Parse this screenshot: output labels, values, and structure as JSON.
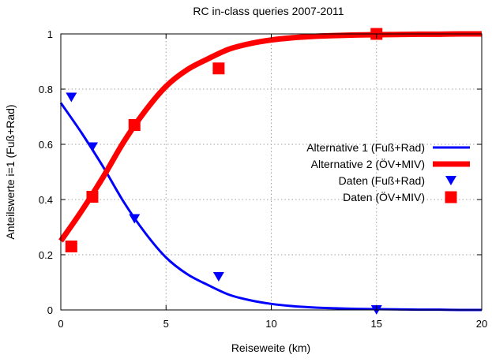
{
  "chart_data": {
    "type": "line",
    "title": "RC in-class queries 2007-2011",
    "xlabel": "Reiseweite (km)",
    "ylabel": "Anteilswerte i=1 (Fuß+Rad)",
    "xlim": [
      0,
      20
    ],
    "ylim": [
      0,
      1
    ],
    "xticks": [
      "0",
      "5",
      "10",
      "15",
      "20"
    ],
    "yticks": [
      "0",
      "0.2",
      "0.4",
      "0.6",
      "0.8",
      "1"
    ],
    "grid": true,
    "legend_position": "right",
    "series": [
      {
        "name": "Alternative 1 (Fuß+Rad)",
        "kind": "line",
        "color": "#0000ff",
        "x": [
          0,
          1,
          2,
          3,
          4,
          5,
          6,
          7,
          8,
          9,
          10,
          11,
          12,
          13,
          14,
          15,
          16,
          17,
          18,
          19,
          20
        ],
        "y": [
          0.75,
          0.64,
          0.52,
          0.39,
          0.28,
          0.19,
          0.13,
          0.09,
          0.055,
          0.035,
          0.022,
          0.014,
          0.009,
          0.006,
          0.004,
          0.003,
          0.002,
          0.001,
          0.001,
          0.0,
          0.0
        ]
      },
      {
        "name": "Alternative 2 (ÖV+MIV)",
        "kind": "line",
        "color": "#ff0000",
        "x": [
          0,
          1,
          2,
          3,
          4,
          5,
          6,
          7,
          8,
          9,
          10,
          11,
          12,
          13,
          14,
          15,
          16,
          17,
          18,
          19,
          20
        ],
        "y": [
          0.25,
          0.36,
          0.48,
          0.61,
          0.72,
          0.81,
          0.87,
          0.91,
          0.945,
          0.965,
          0.978,
          0.986,
          0.991,
          0.994,
          0.996,
          0.997,
          0.998,
          0.999,
          0.999,
          1.0,
          1.0
        ]
      },
      {
        "name": "Daten (Fuß+Rad)",
        "kind": "triangle",
        "color": "#0000ff",
        "x": [
          0.5,
          1.5,
          3.5,
          7.5,
          15
        ],
        "y": [
          0.77,
          0.59,
          0.33,
          0.12,
          0.0
        ]
      },
      {
        "name": "Daten (ÖV+MIV)",
        "kind": "square",
        "color": "#ff0000",
        "x": [
          0.5,
          1.5,
          3.5,
          7.5,
          15
        ],
        "y": [
          0.23,
          0.41,
          0.67,
          0.875,
          1.0
        ]
      }
    ]
  }
}
